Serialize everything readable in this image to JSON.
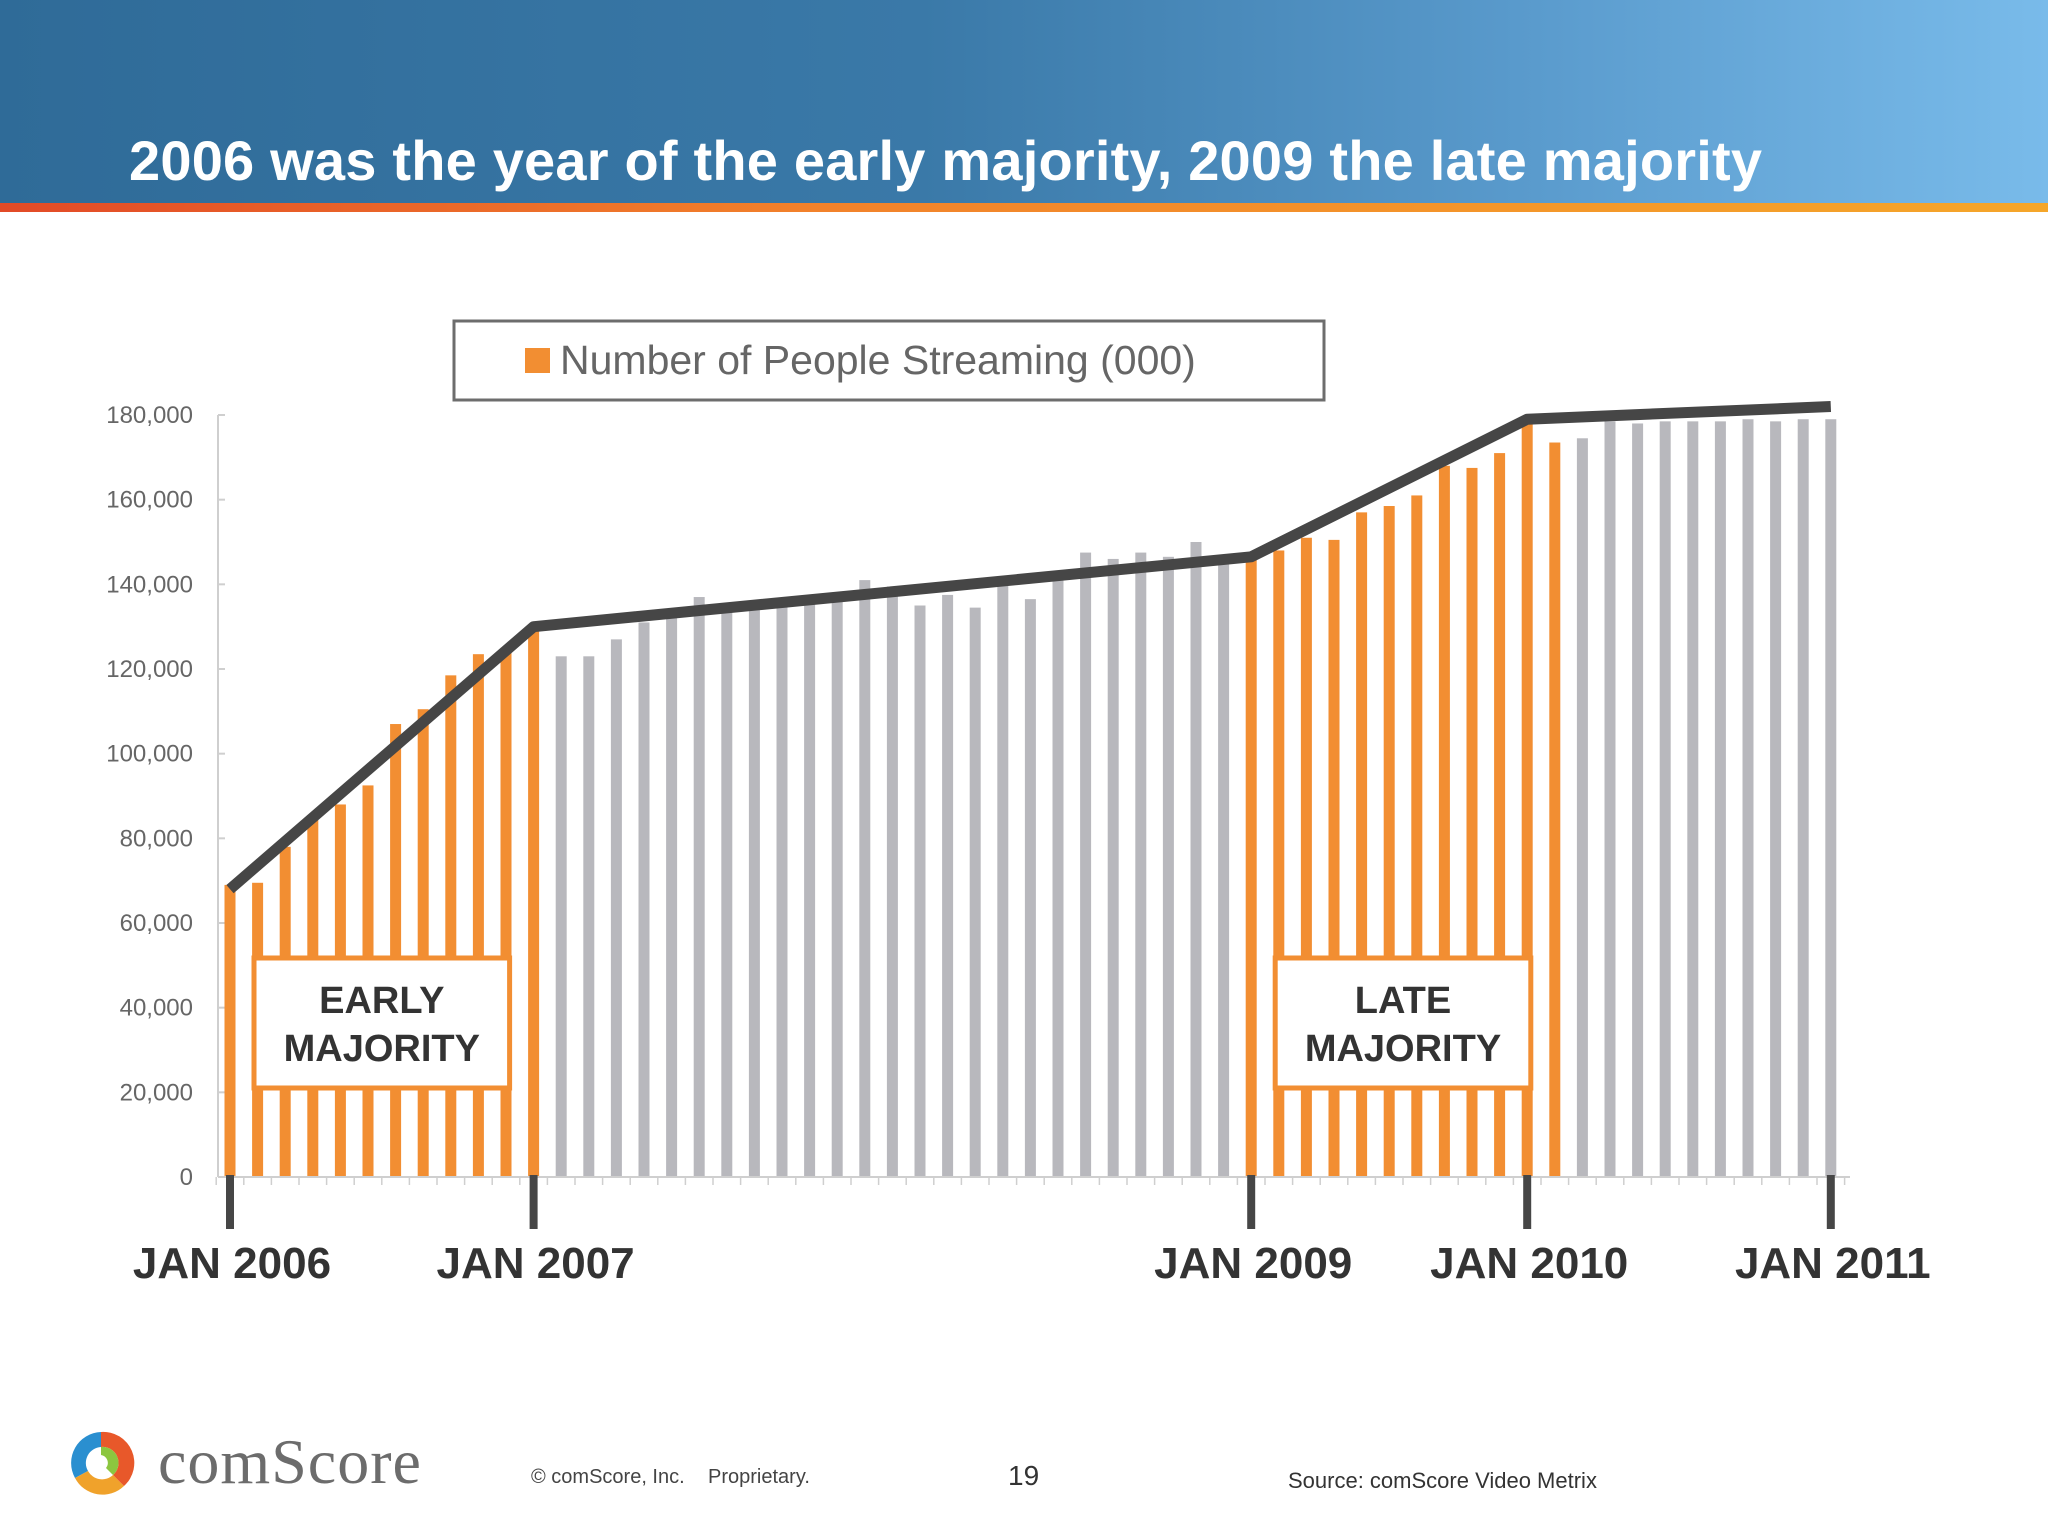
{
  "slide": {
    "title": "2006 was the year of the early majority, 2009 the late majority",
    "page_number": "19",
    "footer": {
      "brand": "comScore",
      "copyright": "© comScore, Inc.",
      "proprietary": "Proprietary.",
      "source": "Source:  comScore Video Metrix"
    }
  },
  "chart_data": {
    "type": "bar",
    "title": "",
    "xlabel": "",
    "ylabel": "",
    "ylim": [
      0,
      180000
    ],
    "y_ticks": [
      0,
      20000,
      40000,
      60000,
      80000,
      100000,
      120000,
      140000,
      160000,
      180000
    ],
    "y_tick_labels": [
      "0",
      "20,000",
      "40,000",
      "60,000",
      "80,000",
      "100,000",
      "120,000",
      "140,000",
      "160,000",
      "180,000"
    ],
    "legend": {
      "position": "top",
      "entries": [
        "Number of People Streaming (000)"
      ]
    },
    "series": [
      {
        "name": "Number of People Streaming (000)",
        "values": [
          69000,
          69500,
          78000,
          85500,
          88000,
          92500,
          107000,
          110500,
          118500,
          123500,
          125000,
          130000,
          123000,
          123000,
          127000,
          131000,
          132500,
          137000,
          134000,
          134500,
          135500,
          136500,
          137500,
          141000,
          139500,
          135000,
          137500,
          134500,
          140000,
          136500,
          141000,
          147500,
          146000,
          147500,
          146500,
          150000,
          147000,
          146000,
          148000,
          151000,
          150500,
          157000,
          158500,
          161000,
          168000,
          167500,
          171000,
          178000,
          173500,
          174500,
          178500,
          178000,
          178500,
          178500,
          178500,
          179000,
          178500,
          179000,
          179000
        ]
      }
    ],
    "highlight_ranges": [
      {
        "label": "EARLY MAJORITY",
        "start_index": 0,
        "end_index": 11
      },
      {
        "label": "LATE MAJORITY",
        "start_index": 37,
        "end_index": 48
      }
    ],
    "trend_line": [
      {
        "index": 0,
        "value": 68000
      },
      {
        "index": 11,
        "value": 130000
      },
      {
        "index": 37,
        "value": 146500
      },
      {
        "index": 47,
        "value": 179000
      },
      {
        "index": 58,
        "value": 182000
      }
    ],
    "milestones": [
      {
        "label": "JAN 2006",
        "index": 0
      },
      {
        "label": "JAN 2007",
        "index": 11
      },
      {
        "label": "JAN 2009",
        "index": 37
      },
      {
        "label": "JAN 2010",
        "index": 47
      },
      {
        "label": "JAN 2011",
        "index": 58
      }
    ],
    "colors": {
      "highlight_bar": "#f28e32",
      "normal_bar": "#b8b8bd",
      "trend_line": "#464646",
      "axis_text": "#666666",
      "milestone_text": "#333333"
    },
    "grid": false
  }
}
